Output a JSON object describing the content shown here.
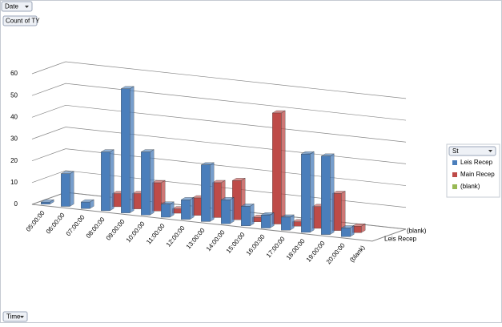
{
  "pivot_fields": {
    "filter": "Date",
    "values": "Count of TY",
    "legend": "St",
    "axis": "Time"
  },
  "chart_data": {
    "type": "bar3d",
    "categories": [
      "05:00:00",
      "06:00:00",
      "07:00:00",
      "08:00:00",
      "09:00:00",
      "10:00:00",
      "11:00:00",
      "12:00:00",
      "13:00:00",
      "14:00:00",
      "15:00:00",
      "16:00:00",
      "17:00:00",
      "18:00:00",
      "19:00:00",
      "20:00:00",
      "(blank)"
    ],
    "series": [
      {
        "name": "Leis Recep",
        "color": "#4a7ebb",
        "values": [
          1,
          15,
          3,
          27,
          57,
          29,
          6,
          9,
          26,
          11,
          9,
          6,
          6,
          36,
          36,
          4,
          null
        ]
      },
      {
        "name": "Main Recep",
        "color": "#be4b48",
        "values": [
          null,
          null,
          null,
          6,
          7,
          13,
          2,
          8,
          16,
          18,
          2,
          51,
          2,
          10,
          17,
          3,
          null
        ]
      },
      {
        "name": "(blank)",
        "color": "#98b954",
        "values": [
          null,
          null,
          null,
          null,
          null,
          null,
          null,
          null,
          null,
          null,
          null,
          null,
          null,
          null,
          null,
          null,
          null
        ]
      }
    ],
    "ylim": [
      0,
      60
    ],
    "yticks": [
      0,
      10,
      20,
      30,
      40,
      50,
      60
    ],
    "grid": true
  }
}
